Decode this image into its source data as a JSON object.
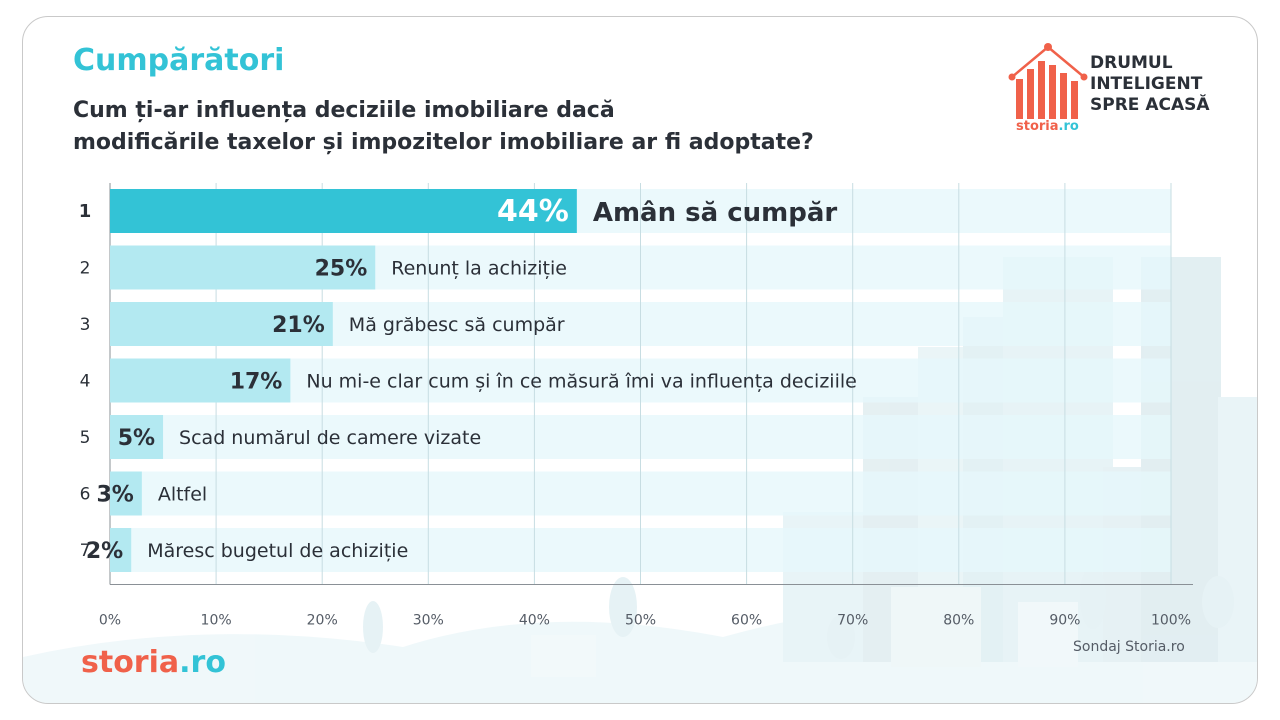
{
  "header": {
    "section_title": "Cumpărători",
    "question_line1": "Cum ți-ar influența deciziile imobiliare dacă",
    "question_line2": "modificările taxelor și impozitelor imobiliare ar fi adoptate?"
  },
  "logo": {
    "tag_line1": "DRUMUL",
    "tag_line2": "INTELIGENT",
    "tag_line3": "SPRE ACASĂ",
    "brand_main": "storia",
    "brand_suffix": ".ro",
    "icon": "house-bar-chart-icon"
  },
  "footer": {
    "source": "Sondaj Storia.ro",
    "brand_main": "storia",
    "brand_suffix": ".ro"
  },
  "colors": {
    "accent": "#33c3d6",
    "bar_light": "#b3e9f1",
    "track": "#e6f8fb",
    "brand_orange": "#f0614a",
    "text_dark": "#2b3038"
  },
  "chart_data": {
    "type": "bar",
    "orientation": "horizontal",
    "categories": [
      "Amân să cumpăr",
      "Renunț la achiziție",
      "Mă grăbesc să cumpăr",
      "Nu mi-e clar cum și în ce măsură îmi va influența deciziile",
      "Scad numărul de camere vizate",
      "Altfel",
      "Măresc bugetul de achiziție"
    ],
    "ranks": [
      "1",
      "2",
      "3",
      "4",
      "5",
      "6",
      "7"
    ],
    "values": [
      44,
      25,
      21,
      17,
      5,
      3,
      2
    ],
    "value_labels": [
      "44%",
      "25%",
      "21%",
      "17%",
      "5%",
      "3%",
      "2%"
    ],
    "xlim": [
      0,
      100
    ],
    "x_ticks": [
      0,
      10,
      20,
      30,
      40,
      50,
      60,
      70,
      80,
      90,
      100
    ],
    "x_tick_labels": [
      "0%",
      "10%",
      "20%",
      "30%",
      "40%",
      "50%",
      "60%",
      "70%",
      "80%",
      "90%",
      "100%"
    ],
    "grid": true,
    "highlight_index": 0
  }
}
